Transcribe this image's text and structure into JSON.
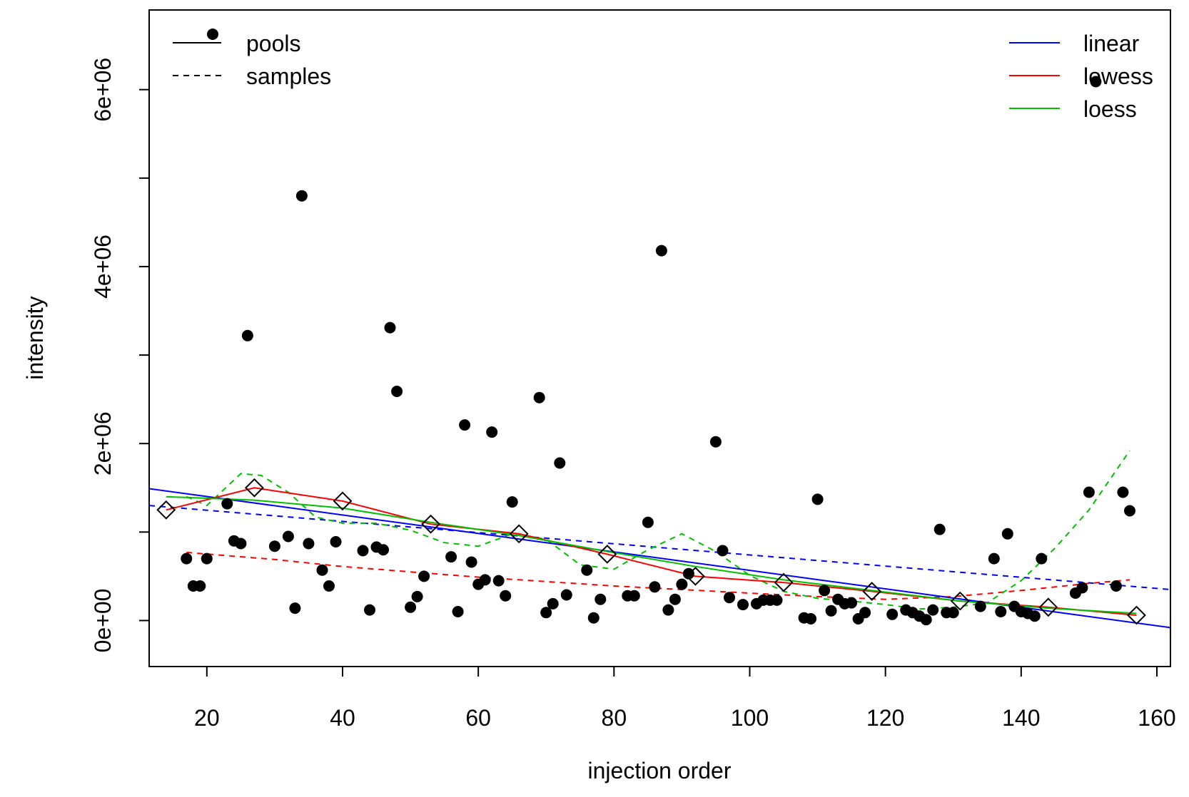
{
  "chart_data": {
    "type": "scatter",
    "xlabel": "injection order",
    "ylabel": "intensity",
    "xlim": [
      11.5,
      162
    ],
    "ylim": [
      -520000,
      6900000
    ],
    "x_ticks": [
      20,
      40,
      60,
      80,
      100,
      120,
      140,
      160
    ],
    "x_tick_labels": [
      "20",
      "40",
      "60",
      "80",
      "100",
      "120",
      "140",
      "160"
    ],
    "y_ticks": [
      0,
      1000000,
      2000000,
      3000000,
      4000000,
      5000000,
      6000000
    ],
    "y_tick_labels": [
      "0e+00",
      "",
      "2e+06",
      "",
      "4e+06",
      "",
      "6e+06"
    ],
    "grid": false,
    "colors": {
      "linear": "#0000ff",
      "lowess": "#ff0000",
      "loess": "#00c000",
      "points": "#000000"
    },
    "legend_style": {
      "position": "top-left",
      "entries": [
        {
          "label": "pools",
          "line": "solid",
          "marker": "filled-circle"
        },
        {
          "label": "samples",
          "line": "dashed",
          "marker": "none"
        }
      ]
    },
    "legend_method": {
      "position": "top-right",
      "entries": [
        {
          "label": "linear",
          "color": "#0000ff"
        },
        {
          "label": "lowess",
          "color": "#ff0000"
        },
        {
          "label": "loess",
          "color": "#00c000"
        }
      ]
    },
    "samples": [
      [
        17,
        700000
      ],
      [
        18,
        390000
      ],
      [
        19,
        390000
      ],
      [
        20,
        700000
      ],
      [
        23,
        1320000
      ],
      [
        24,
        900000
      ],
      [
        25,
        870000
      ],
      [
        26,
        3220000
      ],
      [
        30,
        840000
      ],
      [
        32,
        950000
      ],
      [
        33,
        140000
      ],
      [
        34,
        4800000
      ],
      [
        35,
        870000
      ],
      [
        37,
        570000
      ],
      [
        38,
        390000
      ],
      [
        39,
        890000
      ],
      [
        43,
        790000
      ],
      [
        44,
        120000
      ],
      [
        45,
        830000
      ],
      [
        46,
        800000
      ],
      [
        47,
        3310000
      ],
      [
        48,
        2590000
      ],
      [
        50,
        150000
      ],
      [
        51,
        270000
      ],
      [
        52,
        500000
      ],
      [
        56,
        720000
      ],
      [
        57,
        100000
      ],
      [
        58,
        2210000
      ],
      [
        59,
        660000
      ],
      [
        60,
        410000
      ],
      [
        61,
        460000
      ],
      [
        62,
        2130000
      ],
      [
        63,
        450000
      ],
      [
        64,
        280000
      ],
      [
        65,
        1340000
      ],
      [
        69,
        2520000
      ],
      [
        70,
        90000
      ],
      [
        71,
        190000
      ],
      [
        72,
        1780000
      ],
      [
        73,
        290000
      ],
      [
        76,
        570000
      ],
      [
        77,
        30000
      ],
      [
        78,
        240000
      ],
      [
        82,
        280000
      ],
      [
        83,
        280000
      ],
      [
        85,
        1110000
      ],
      [
        86,
        380000
      ],
      [
        87,
        4180000
      ],
      [
        88,
        120000
      ],
      [
        89,
        240000
      ],
      [
        90,
        410000
      ],
      [
        91,
        530000
      ],
      [
        95,
        2020000
      ],
      [
        96,
        790000
      ],
      [
        97,
        260000
      ],
      [
        99,
        180000
      ],
      [
        101,
        190000
      ],
      [
        102,
        230000
      ],
      [
        103,
        230000
      ],
      [
        104,
        230000
      ],
      [
        108,
        30000
      ],
      [
        109,
        20000
      ],
      [
        110,
        1370000
      ],
      [
        111,
        340000
      ],
      [
        112,
        110000
      ],
      [
        113,
        240000
      ],
      [
        114,
        190000
      ],
      [
        115,
        200000
      ],
      [
        116,
        20000
      ],
      [
        117,
        90000
      ],
      [
        121,
        70000
      ],
      [
        123,
        120000
      ],
      [
        124,
        90000
      ],
      [
        125,
        50000
      ],
      [
        126,
        10000
      ],
      [
        127,
        120000
      ],
      [
        128,
        1030000
      ],
      [
        129,
        90000
      ],
      [
        130,
        90000
      ],
      [
        134,
        160000
      ],
      [
        136,
        700000
      ],
      [
        137,
        100000
      ],
      [
        138,
        980000
      ],
      [
        139,
        160000
      ],
      [
        140,
        100000
      ],
      [
        141,
        80000
      ],
      [
        142,
        50000
      ],
      [
        143,
        700000
      ],
      [
        148,
        310000
      ],
      [
        149,
        370000
      ],
      [
        150,
        1450000
      ],
      [
        151,
        6090000
      ],
      [
        154,
        390000
      ],
      [
        155,
        1450000
      ],
      [
        156,
        1240000
      ]
    ],
    "pools": [
      [
        14,
        1250000
      ],
      [
        27,
        1500000
      ],
      [
        40,
        1350000
      ],
      [
        53,
        1090000
      ],
      [
        66,
        980000
      ],
      [
        79,
        750000
      ],
      [
        92,
        500000
      ],
      [
        105,
        430000
      ],
      [
        118,
        330000
      ],
      [
        131,
        220000
      ],
      [
        144,
        150000
      ],
      [
        157,
        60000
      ]
    ],
    "fits": {
      "pools": {
        "linear": [
          [
            11.5,
            1490000
          ],
          [
            162,
            -80000
          ]
        ],
        "lowess": [
          [
            14,
            1250000
          ],
          [
            27,
            1500000
          ],
          [
            40,
            1350000
          ],
          [
            53,
            1090000
          ],
          [
            66,
            980000
          ],
          [
            79,
            750000
          ],
          [
            92,
            500000
          ],
          [
            105,
            430000
          ],
          [
            118,
            330000
          ],
          [
            131,
            220000
          ],
          [
            144,
            150000
          ],
          [
            157,
            60000
          ]
        ],
        "loess": [
          [
            14,
            1400000
          ],
          [
            27,
            1360000
          ],
          [
            40,
            1270000
          ],
          [
            53,
            1110000
          ],
          [
            66,
            960000
          ],
          [
            79,
            780000
          ],
          [
            92,
            610000
          ],
          [
            105,
            460000
          ],
          [
            118,
            340000
          ],
          [
            131,
            220000
          ],
          [
            144,
            140000
          ],
          [
            157,
            80000
          ]
        ]
      },
      "samples": {
        "linear": [
          [
            11.5,
            1300000
          ],
          [
            162,
            350000
          ]
        ],
        "lowess": [
          [
            17,
            770000
          ],
          [
            30,
            690000
          ],
          [
            40,
            610000
          ],
          [
            50,
            550000
          ],
          [
            60,
            490000
          ],
          [
            70,
            440000
          ],
          [
            80,
            390000
          ],
          [
            90,
            350000
          ],
          [
            100,
            310000
          ],
          [
            110,
            270000
          ],
          [
            120,
            240000
          ],
          [
            130,
            270000
          ],
          [
            140,
            340000
          ],
          [
            150,
            420000
          ],
          [
            156,
            460000
          ]
        ],
        "loess": [
          [
            17,
            1400000
          ],
          [
            20,
            1300000
          ],
          [
            25,
            1660000
          ],
          [
            28,
            1640000
          ],
          [
            32,
            1450000
          ],
          [
            36,
            1170000
          ],
          [
            40,
            1100000
          ],
          [
            45,
            1100000
          ],
          [
            50,
            1020000
          ],
          [
            55,
            880000
          ],
          [
            60,
            840000
          ],
          [
            65,
            980000
          ],
          [
            70,
            920000
          ],
          [
            75,
            630000
          ],
          [
            80,
            580000
          ],
          [
            85,
            800000
          ],
          [
            90,
            980000
          ],
          [
            95,
            780000
          ],
          [
            100,
            510000
          ],
          [
            105,
            330000
          ],
          [
            110,
            250000
          ],
          [
            115,
            220000
          ],
          [
            120,
            180000
          ],
          [
            125,
            130000
          ],
          [
            130,
            150000
          ],
          [
            135,
            200000
          ],
          [
            140,
            450000
          ],
          [
            145,
            820000
          ],
          [
            150,
            1250000
          ],
          [
            156,
            1920000
          ]
        ]
      }
    }
  }
}
